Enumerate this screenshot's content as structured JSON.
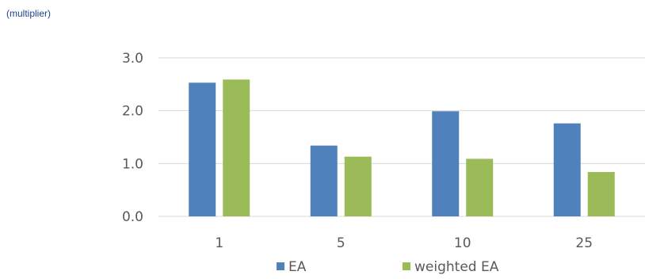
{
  "unit_label": "(multiplier)",
  "chart_data": {
    "type": "bar",
    "categories": [
      "1",
      "5",
      "10",
      "25"
    ],
    "series": [
      {
        "name": "EA",
        "values": [
          2.53,
          1.34,
          1.99,
          1.76
        ],
        "color": "#4f81bd"
      },
      {
        "name": "weighted EA",
        "values": [
          2.59,
          1.13,
          1.09,
          0.84
        ],
        "color": "#9bbb59"
      }
    ],
    "ylim": [
      0,
      3
    ],
    "yticks": [
      "0.0",
      "1.0",
      "2.0",
      "3.0"
    ],
    "grid": true,
    "legend": "bottom",
    "gridline_color": "#d9d9d9"
  }
}
